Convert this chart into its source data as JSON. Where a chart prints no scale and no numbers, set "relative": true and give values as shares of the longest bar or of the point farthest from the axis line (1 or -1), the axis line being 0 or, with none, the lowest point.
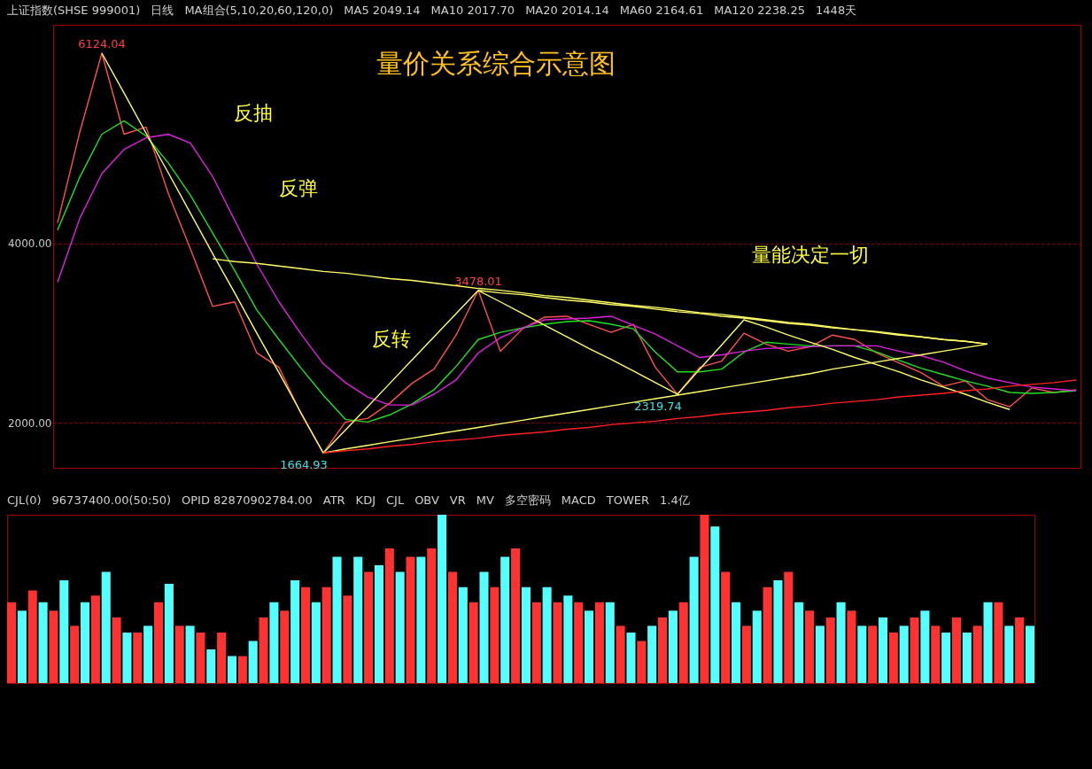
{
  "chart_data": [
    {
      "type": "line",
      "title": "量价关系综合示意图",
      "ylim": [
        1500,
        6440
      ],
      "yticks": [
        {
          "value": 4000,
          "label": "4000.00"
        },
        {
          "value": 2000,
          "label": "2000.00"
        }
      ],
      "tick_labels": "y",
      "grid": "y",
      "annotations": [
        "上证指数(SHSE 999001)",
        "日线",
        "MA组合(5,10,20,60,120,0)",
        "MA5 2049.14",
        "MA10 2017.70",
        "MA20 2014.14",
        "MA60 2164.61",
        "MA120 2238.25",
        "1448天",
        "反抽",
        "反弹",
        "反转",
        "量能决定一切"
      ],
      "categories": [
        null,
        null,
        null,
        null,
        null,
        null,
        null,
        null,
        null,
        null,
        null,
        null,
        null,
        null,
        null,
        null,
        null,
        null,
        null,
        null,
        null,
        null,
        null,
        null,
        null,
        null,
        null,
        null,
        null,
        null,
        null,
        null,
        null,
        null,
        null,
        null,
        null,
        null,
        null,
        null,
        null,
        null,
        null,
        null,
        null,
        null,
        null
      ],
      "series": [
        {
          "color": "#ff5050",
          "values": [
            4230,
            5240,
            6124.04,
            5220,
            5300,
            4560,
            3940,
            3300,
            3350,
            2780,
            2620,
            2100,
            1664.93,
            2010,
            2050,
            2220,
            2440,
            2600,
            2980,
            3478.01,
            2800,
            3050,
            3180,
            3190,
            3100,
            3010,
            3100,
            2620,
            2319.74,
            2620,
            2690,
            3000,
            2880,
            2800,
            2850,
            2980,
            2930,
            2780,
            2670,
            2560,
            2410,
            2470,
            2260,
            2180,
            2390,
            2340,
            2370
          ],
          "value_labels": [
            null,
            null,
            "6124.04",
            null,
            null,
            null,
            null,
            null,
            null,
            null,
            null,
            null,
            "1664.93",
            null,
            null,
            null,
            null,
            null,
            null,
            "3478.01",
            null,
            null,
            null,
            null,
            null,
            null,
            null,
            null,
            "2319.74",
            null,
            null,
            null,
            null,
            null,
            null,
            null,
            null,
            null,
            null,
            null,
            null,
            null,
            null,
            null,
            null,
            null,
            null
          ]
        },
        {
          "color": "#20e020",
          "values": [
            4150,
            4740,
            5220,
            5370,
            5200,
            4900,
            4540,
            4120,
            3700,
            3260,
            2930,
            2610,
            2310,
            2040,
            2010,
            2090,
            2210,
            2370,
            2630,
            2930,
            3010,
            3060,
            3100,
            3130,
            3140,
            3100,
            3050,
            2790,
            2570,
            2570,
            2600,
            2790,
            2900,
            2880,
            2860,
            2860,
            2860,
            2790,
            2700,
            2610,
            2540,
            2470,
            2410,
            2340,
            2330,
            2340,
            2360
          ]
        },
        {
          "color": "#e020e0",
          "values": [
            3570,
            4280,
            4780,
            5050,
            5180,
            5220,
            5120,
            4750,
            4260,
            3770,
            3350,
            2990,
            2660,
            2450,
            2290,
            2200,
            2200,
            2320,
            2480,
            2780,
            2950,
            3060,
            3150,
            3160,
            3170,
            3190,
            3090,
            2990,
            2860,
            2730,
            2760,
            2800,
            2830,
            2840,
            2850,
            2860,
            2860,
            2860,
            2800,
            2750,
            2680,
            2580,
            2500,
            2450,
            2400,
            2380,
            2360
          ]
        },
        {
          "color": "#ffff66",
          "values": [
            null,
            null,
            6124.04,
            5680,
            5230,
            4790,
            4340,
            3890,
            3450,
            3000,
            2560,
            2110,
            1664.93,
            null,
            null,
            null,
            null,
            null,
            null,
            null,
            null,
            null,
            null,
            null,
            null,
            null,
            null,
            null,
            null,
            null,
            null,
            null,
            null,
            null,
            null,
            null,
            null,
            null,
            null,
            null,
            null,
            null,
            null,
            null,
            null,
            null,
            null
          ]
        },
        {
          "color": "#ffff66",
          "values": [
            null,
            null,
            null,
            null,
            null,
            null,
            null,
            3830,
            3800,
            3780,
            3750,
            3720,
            3690,
            3670,
            3640,
            3610,
            3590,
            3560,
            3530,
            3500,
            3480,
            3450,
            3420,
            3400,
            3370,
            3340,
            3310,
            3290,
            3260,
            3230,
            3210,
            3180,
            3150,
            3120,
            3100,
            3070,
            3040,
            3020,
            2990,
            2960,
            2930,
            2910,
            2880,
            null,
            null,
            null,
            null
          ]
        },
        {
          "color": "#ffff66",
          "values": [
            null,
            null,
            null,
            null,
            null,
            null,
            null,
            null,
            null,
            null,
            null,
            null,
            1664.93,
            1920,
            2180,
            2440,
            2700,
            2960,
            3220,
            3478.01,
            3350,
            3220,
            3090,
            2960,
            2830,
            2710,
            2580,
            2450,
            2319.74,
            2600,
            2870,
            3150,
            3070,
            2980,
            2900,
            2820,
            2730,
            2650,
            2570,
            2480,
            2400,
            2320,
            2230,
            2150,
            null,
            null,
            null
          ]
        },
        {
          "color": "#ffff66",
          "values": [
            null,
            null,
            null,
            null,
            null,
            null,
            null,
            null,
            null,
            null,
            null,
            null,
            null,
            null,
            null,
            null,
            null,
            null,
            null,
            3478.01,
            3450,
            3430,
            3400,
            3370,
            3350,
            3320,
            3300,
            3270,
            3240,
            3220,
            3190,
            3170,
            3140,
            3110,
            3090,
            3060,
            3040,
            3010,
            2980,
            2960,
            2930,
            2910,
            2880,
            null,
            null,
            null,
            null
          ]
        },
        {
          "color": "#ffff66",
          "values": [
            null,
            null,
            null,
            null,
            null,
            null,
            null,
            null,
            null,
            null,
            null,
            null,
            1664.93,
            1710,
            1750,
            1790,
            1830,
            1870,
            1910,
            1950,
            1990,
            2030,
            2070,
            2110,
            2150,
            2190,
            2230,
            2270,
            2310,
            2350,
            2390,
            2430,
            2470,
            2510,
            2550,
            2600,
            2640,
            2680,
            2720,
            2760,
            2800,
            2840,
            2880,
            null,
            null,
            null,
            null
          ]
        },
        {
          "color": "#ff2020",
          "values": [
            null,
            null,
            null,
            null,
            null,
            null,
            null,
            null,
            null,
            null,
            null,
            null,
            1664.93,
            1690,
            1710,
            1740,
            1760,
            1790,
            1810,
            1830,
            1860,
            1880,
            1900,
            1930,
            1950,
            1980,
            2000,
            2020,
            2050,
            2070,
            2100,
            2120,
            2140,
            2170,
            2190,
            2220,
            2240,
            2260,
            2290,
            2310,
            2330,
            2360,
            2380,
            2410,
            2430,
            2450,
            2478
          ]
        }
      ]
    },
    {
      "type": "bar",
      "relative": true,
      "tick_labels": false,
      "annotations": [
        "CJL(0)",
        "96737400.00(50:50)",
        "OPID 82870902784.00",
        "ATR",
        "KDJ",
        "CJL",
        "OBV",
        "VR",
        "MV",
        "多空密码",
        "MACD",
        "TOWER",
        "1.4亿"
      ],
      "categories": [
        null,
        null,
        null,
        null,
        null,
        null,
        null,
        null,
        null,
        null,
        null,
        null,
        null,
        null,
        null,
        null,
        null,
        null,
        null,
        null,
        null,
        null,
        null,
        null,
        null,
        null,
        null,
        null,
        null,
        null,
        null,
        null,
        null,
        null,
        null,
        null,
        null,
        null,
        null,
        null,
        null,
        null,
        null,
        null,
        null,
        null,
        null,
        null,
        null,
        null,
        null,
        null,
        null,
        null,
        null,
        null,
        null,
        null,
        null,
        null,
        null,
        null,
        null,
        null,
        null,
        null,
        null,
        null,
        null,
        null,
        null,
        null,
        null,
        null,
        null,
        null,
        null,
        null,
        null,
        null,
        null,
        null,
        null,
        null,
        null,
        null,
        null,
        null,
        null,
        null,
        null,
        null,
        null,
        null,
        null,
        null,
        null,
        null
      ],
      "values": [
        0.48,
        0.43,
        0.55,
        0.48,
        0.43,
        0.61,
        0.34,
        0.48,
        0.52,
        0.66,
        0.39,
        0.3,
        0.3,
        0.34,
        0.48,
        0.59,
        0.34,
        0.34,
        0.3,
        0.2,
        0.3,
        0.16,
        0.16,
        0.25,
        0.39,
        0.48,
        0.43,
        0.61,
        0.57,
        0.48,
        0.57,
        0.75,
        0.52,
        0.75,
        0.66,
        0.7,
        0.8,
        0.66,
        0.75,
        0.75,
        0.8,
        1,
        0.66,
        0.57,
        0.48,
        0.66,
        0.57,
        0.75,
        0.8,
        0.57,
        0.48,
        0.57,
        0.48,
        0.52,
        0.48,
        0.43,
        0.48,
        0.48,
        0.34,
        0.3,
        0.25,
        0.34,
        0.39,
        0.43,
        0.48,
        0.75,
        1,
        0.93,
        0.66,
        0.48,
        0.34,
        0.43,
        0.57,
        0.61,
        0.66,
        0.48,
        0.43,
        0.34,
        0.39,
        0.48,
        0.43,
        0.34,
        0.34,
        0.39,
        0.3,
        0.34,
        0.39,
        0.43,
        0.34,
        0.3,
        0.39,
        0.3,
        0.34,
        0.48,
        0.48,
        0.34,
        0.39,
        0.34
      ],
      "colors": [
        "#ff3232",
        "#54ffff",
        "#ff3232",
        "#54ffff",
        "#ff3232",
        "#54ffff",
        "#ff3232",
        "#54ffff",
        "#ff3232",
        "#54ffff",
        "#ff3232",
        "#54ffff",
        "#ff3232",
        "#54ffff",
        "#ff3232",
        "#54ffff",
        "#ff3232",
        "#54ffff",
        "#ff3232",
        "#54ffff",
        "#ff3232",
        "#54ffff",
        "#ff3232",
        "#54ffff",
        "#ff3232",
        "#54ffff",
        "#ff3232",
        "#54ffff",
        "#ff3232",
        "#54ffff",
        "#ff3232",
        "#54ffff",
        "#ff3232",
        "#54ffff",
        "#ff3232",
        "#54ffff",
        "#ff3232",
        "#54ffff",
        "#ff3232",
        "#54ffff",
        "#ff3232",
        "#54ffff",
        "#ff3232",
        "#54ffff",
        "#ff3232",
        "#54ffff",
        "#ff3232",
        "#54ffff",
        "#ff3232",
        "#54ffff",
        "#ff3232",
        "#54ffff",
        "#ff3232",
        "#54ffff",
        "#ff3232",
        "#54ffff",
        "#ff3232",
        "#54ffff",
        "#ff3232",
        "#54ffff",
        "#ff3232",
        "#54ffff",
        "#ff3232",
        "#54ffff",
        "#ff3232",
        "#54ffff",
        "#ff3232",
        "#54ffff",
        "#ff3232",
        "#54ffff",
        "#ff3232",
        "#54ffff",
        "#ff3232",
        "#54ffff",
        "#ff3232",
        "#54ffff",
        "#ff3232",
        "#54ffff",
        "#ff3232",
        "#54ffff",
        "#ff3232",
        "#54ffff",
        "#ff3232",
        "#54ffff",
        "#ff3232",
        "#54ffff",
        "#ff3232",
        "#54ffff",
        "#ff3232",
        "#54ffff",
        "#ff3232",
        "#54ffff",
        "#ff3232",
        "#54ffff",
        "#ff3232",
        "#54ffff",
        "#ff3232",
        "#54ffff"
      ]
    }
  ]
}
